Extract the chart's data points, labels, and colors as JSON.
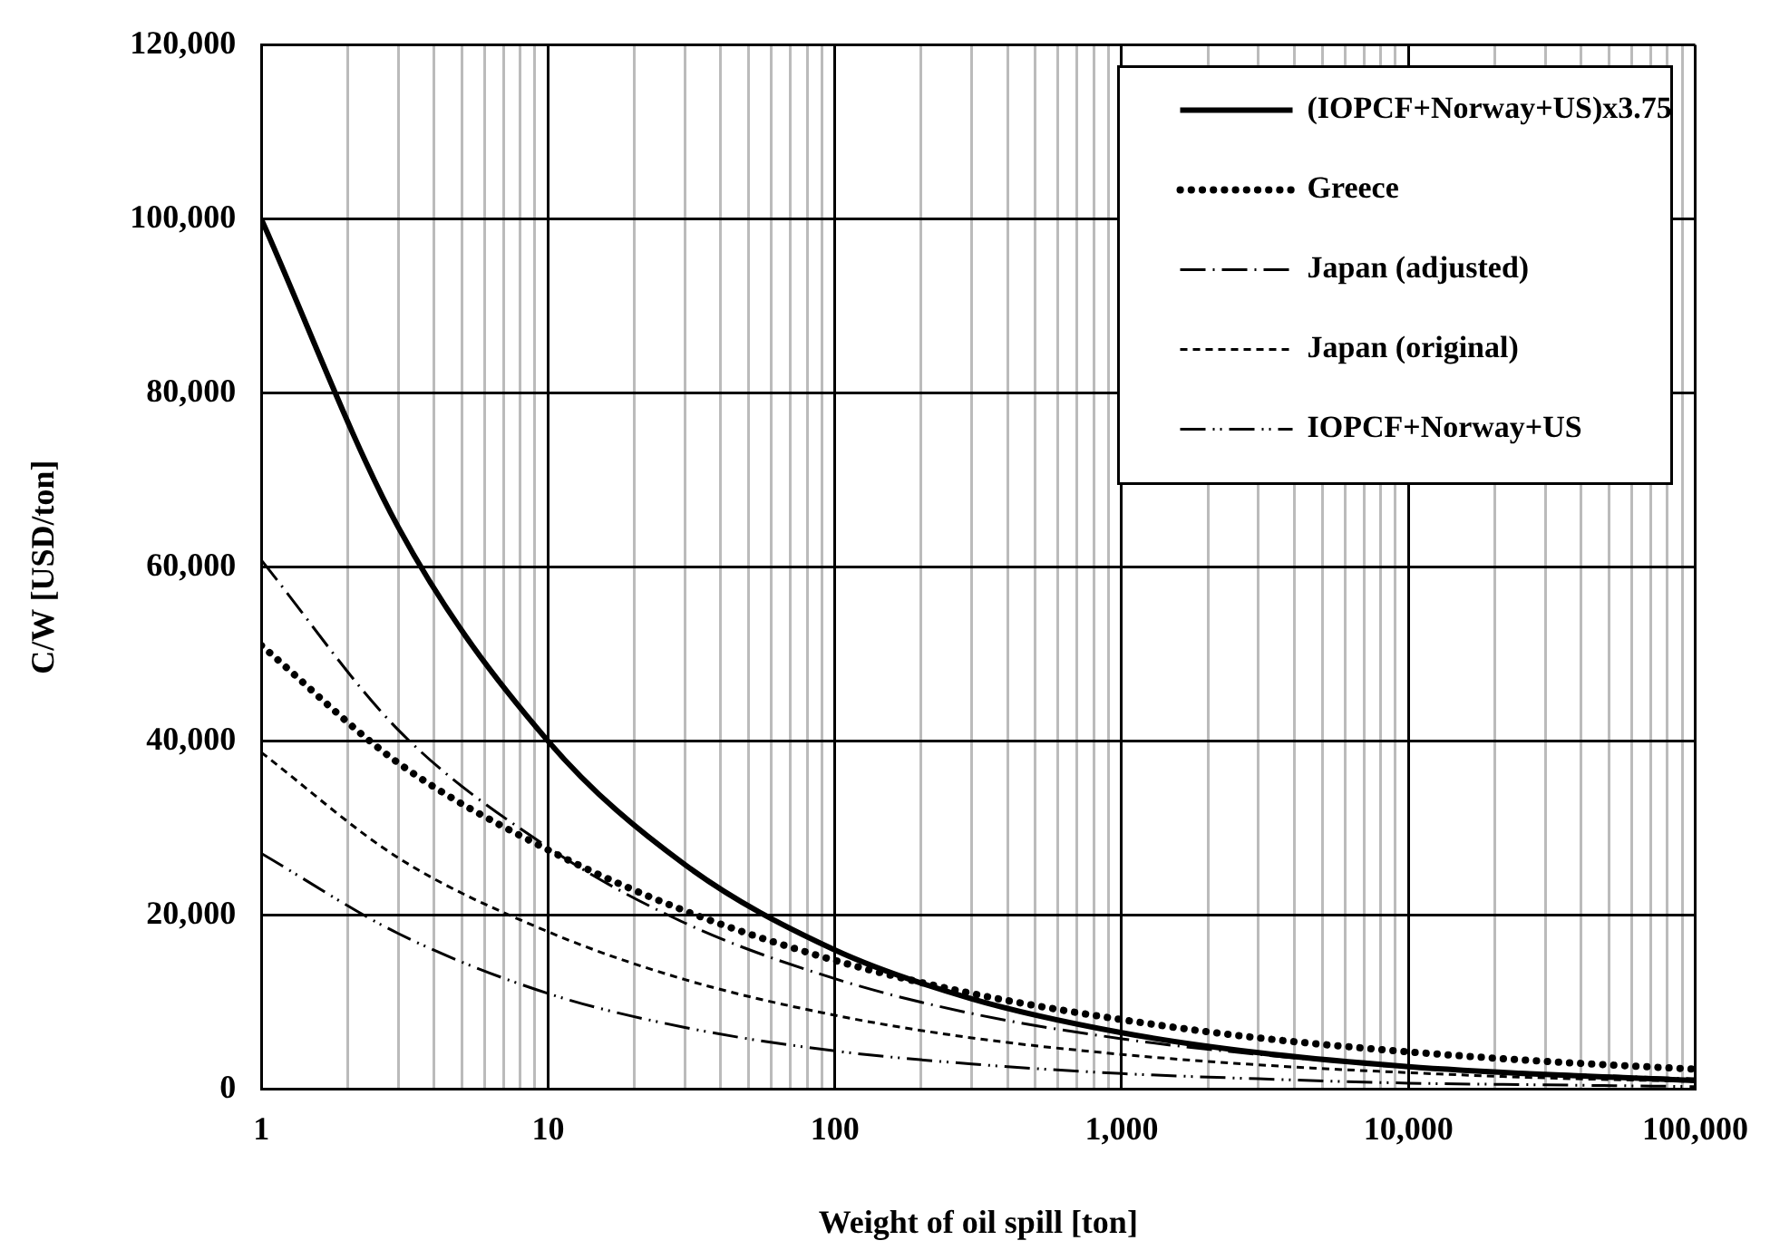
{
  "chart_data": {
    "type": "line",
    "xlabel": "Weight of oil spill [ton]",
    "ylabel": "C/W [USD/ton]",
    "log": "x",
    "grid": true,
    "legend": "top right",
    "marker": "none",
    "x": [
      1,
      3,
      10,
      30,
      100,
      300,
      1000,
      3000,
      10000,
      30000,
      100000
    ],
    "xlim": [
      1,
      100000
    ],
    "xticks": [
      {
        "value": 1,
        "label": "1"
      },
      {
        "value": 2,
        "label": null
      },
      {
        "value": 3,
        "label": null
      },
      {
        "value": 4,
        "label": null
      },
      {
        "value": 5,
        "label": null
      },
      {
        "value": 6,
        "label": null
      },
      {
        "value": 7,
        "label": null
      },
      {
        "value": 8,
        "label": null
      },
      {
        "value": 9,
        "label": null
      },
      {
        "value": 10,
        "label": "10"
      },
      {
        "value": 20,
        "label": null
      },
      {
        "value": 30,
        "label": null
      },
      {
        "value": 40,
        "label": null
      },
      {
        "value": 50,
        "label": null
      },
      {
        "value": 60,
        "label": null
      },
      {
        "value": 70,
        "label": null
      },
      {
        "value": 80,
        "label": null
      },
      {
        "value": 90,
        "label": null
      },
      {
        "value": 100,
        "label": "100"
      },
      {
        "value": 200,
        "label": null
      },
      {
        "value": 300,
        "label": null
      },
      {
        "value": 400,
        "label": null
      },
      {
        "value": 500,
        "label": null
      },
      {
        "value": 600,
        "label": null
      },
      {
        "value": 700,
        "label": null
      },
      {
        "value": 800,
        "label": null
      },
      {
        "value": 900,
        "label": null
      },
      {
        "value": 1000,
        "label": "1,000"
      },
      {
        "value": 2000,
        "label": null
      },
      {
        "value": 3000,
        "label": null
      },
      {
        "value": 4000,
        "label": null
      },
      {
        "value": 5000,
        "label": null
      },
      {
        "value": 6000,
        "label": null
      },
      {
        "value": 7000,
        "label": null
      },
      {
        "value": 8000,
        "label": null
      },
      {
        "value": 9000,
        "label": null
      },
      {
        "value": 10000,
        "label": "10,000"
      },
      {
        "value": 20000,
        "label": null
      },
      {
        "value": 30000,
        "label": null
      },
      {
        "value": 40000,
        "label": null
      },
      {
        "value": 50000,
        "label": null
      },
      {
        "value": 60000,
        "label": null
      },
      {
        "value": 70000,
        "label": null
      },
      {
        "value": 80000,
        "label": null
      },
      {
        "value": 90000,
        "label": null
      },
      {
        "value": 100000,
        "label": "100,000"
      }
    ],
    "ylim": [
      0,
      120000
    ],
    "yticks": [
      {
        "value": 0,
        "label": "0"
      },
      {
        "value": 20000,
        "label": "20,000"
      },
      {
        "value": 40000,
        "label": "40,000"
      },
      {
        "value": 60000,
        "label": "60,000"
      },
      {
        "value": 80000,
        "label": "80,000"
      },
      {
        "value": 100000,
        "label": "100,000"
      },
      {
        "value": 120000,
        "label": "120,000"
      }
    ],
    "series": [
      {
        "name": "(IOPCF+Norway+US)x3.75",
        "color": "#000000",
        "line_style": "solid",
        "values": [
          100000,
          64600,
          40000,
          25800,
          16000,
          10400,
          6500,
          4200,
          2600,
          1700,
          1000
        ]
      },
      {
        "name": "Greece",
        "color": "#000000",
        "line_style": "dotted",
        "values": [
          51000,
          37500,
          27500,
          20500,
          14800,
          11000,
          8000,
          5900,
          4300,
          3200,
          2300
        ]
      },
      {
        "name": "Japan (adjusted)",
        "color": "#000000",
        "line_style": "dashdot",
        "values": [
          60800,
          41300,
          27800,
          19100,
          12700,
          8700,
          5800,
          4000,
          2600,
          1800,
          1200
        ]
      },
      {
        "name": "Japan (original)",
        "color": "#000000",
        "line_style": "dashed",
        "values": [
          38700,
          26600,
          18100,
          12600,
          8500,
          5900,
          4000,
          2800,
          1900,
          1300,
          900
        ]
      },
      {
        "name": "IOPCF+Norway+US",
        "color": "#000000",
        "line_style": "dashdotdot",
        "values": [
          27100,
          17900,
          11000,
          7100,
          4400,
          2900,
          1800,
          1200,
          700,
          500,
          300
        ]
      }
    ]
  }
}
